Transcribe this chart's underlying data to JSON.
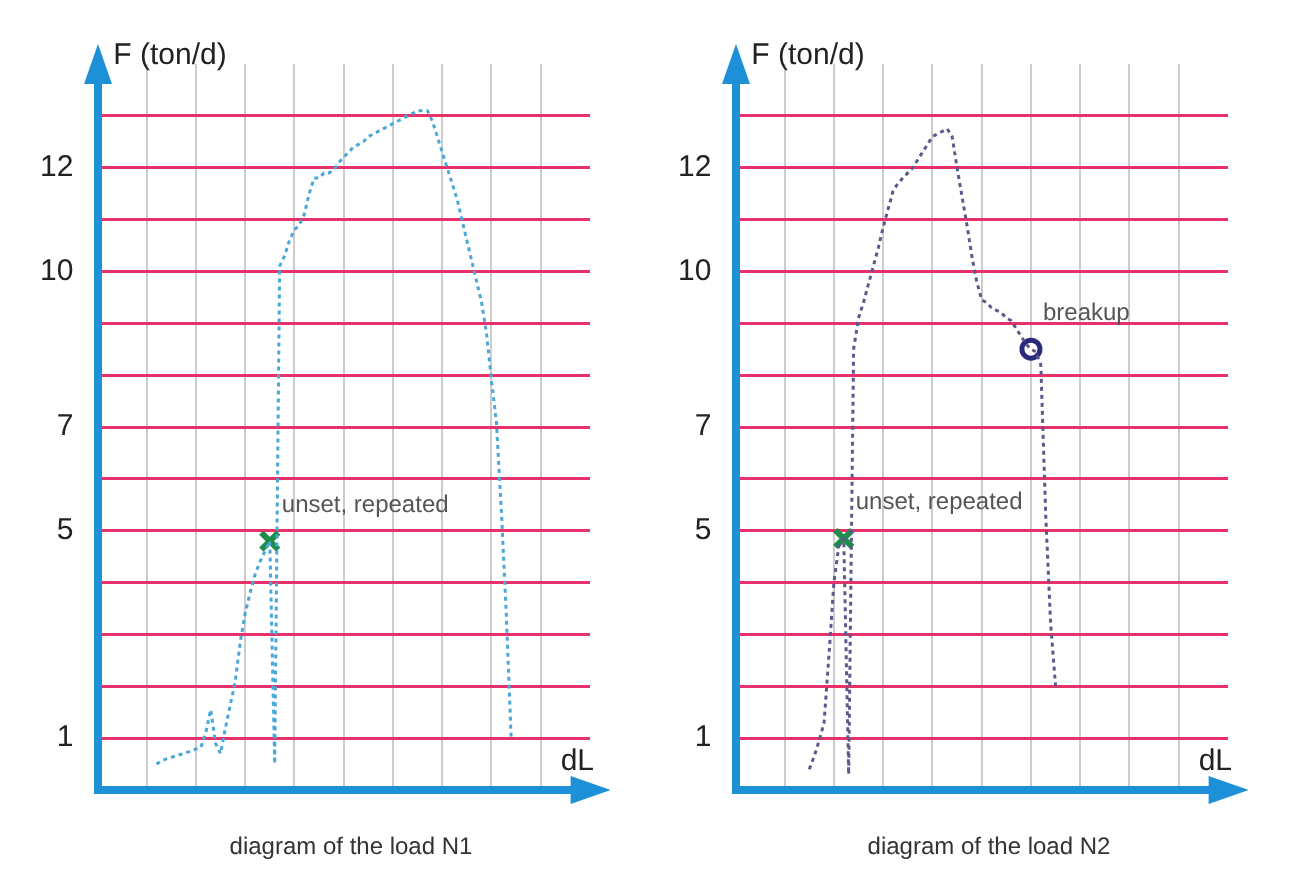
{
  "chart_data": [
    {
      "type": "line",
      "xlabel": "dL",
      "ylabel": "F (ton/d)",
      "ylim": [
        0,
        14
      ],
      "categories": [
        null,
        null,
        null,
        null,
        null,
        null,
        null,
        null,
        null,
        null,
        null,
        null,
        null,
        null,
        null,
        null,
        null,
        null,
        null,
        null,
        null,
        null,
        null,
        null,
        null,
        null,
        null,
        null,
        null,
        null,
        null,
        null,
        null,
        null,
        null,
        null,
        null,
        null,
        null,
        null,
        null,
        null,
        null,
        null,
        null,
        null,
        null,
        null,
        null,
        null,
        null,
        null,
        null,
        null,
        null,
        null,
        null,
        null,
        null,
        null,
        null,
        null,
        null,
        null,
        null,
        null,
        null,
        null,
        null,
        null,
        null,
        null,
        null,
        null,
        null,
        null,
        null,
        null,
        null,
        null,
        null,
        null,
        null,
        null,
        null,
        null,
        null,
        null,
        null,
        null,
        null,
        null,
        null,
        null,
        null,
        null,
        null,
        null,
        null,
        null,
        null
      ],
      "yticks": [
        1,
        {
          "value": 2,
          "label": null
        },
        {
          "value": 3,
          "label": null
        },
        {
          "value": 4,
          "label": null
        },
        5,
        {
          "value": 6,
          "label": null
        },
        7,
        {
          "value": 8,
          "label": null
        },
        {
          "value": 9,
          "label": null
        },
        10,
        {
          "value": 11,
          "label": null
        },
        12,
        {
          "value": 13,
          "label": null
        }
      ],
      "tick_labels": "y",
      "grid": true,
      "legend": false,
      "line_style": "dotted",
      "series": [
        {
          "color": "#4aa8d8",
          "marker": "none",
          "values": [
            null,
            null,
            null,
            null,
            null,
            null,
            null,
            null,
            null,
            null,
            null,
            null,
            0.5,
            0.56,
            0.6,
            0.63,
            0.66,
            0.69,
            0.72,
            0.75,
            0.79,
            0.82,
            1.1,
            1.55,
            0.9,
            0.7,
            1.2,
            1.65,
            2.1,
            2.85,
            3.4,
            3.8,
            4.15,
            4.4,
            4.6,
            4.8,
            0.5,
            10.1,
            10.3,
            10.6,
            10.8,
            10.9,
            11.1,
            11.5,
            11.8,
            11.8,
            11.9,
            11.9,
            11.95,
            12.1,
            12.2,
            12.3,
            12.4,
            12.45,
            12.5,
            12.6,
            12.65,
            12.7,
            12.75,
            12.8,
            12.85,
            12.9,
            12.95,
            13.0,
            13.05,
            13.1,
            13.1,
            13.1,
            12.9,
            12.6,
            12.3,
            12.0,
            11.7,
            11.4,
            11.0,
            10.6,
            10.2,
            9.8,
            9.4,
            8.8,
            7.9,
            7.1,
            5.4,
            3.4,
            1.0,
            null,
            null,
            null,
            null,
            null,
            null,
            null,
            null,
            null,
            null,
            null,
            null,
            null,
            null,
            null,
            null
          ]
        },
        {
          "type": "scatter",
          "color": "#1e8c4a",
          "marker": "cross",
          "values": [
            null,
            null,
            null,
            null,
            null,
            null,
            null,
            null,
            null,
            null,
            null,
            null,
            null,
            null,
            null,
            null,
            null,
            null,
            null,
            null,
            null,
            null,
            null,
            null,
            null,
            null,
            null,
            null,
            null,
            null,
            null,
            null,
            null,
            null,
            null,
            4.8,
            null,
            null,
            null,
            null,
            null,
            null,
            null,
            null,
            null,
            null,
            null,
            null,
            null,
            null,
            null,
            null,
            null,
            null,
            null,
            null,
            null,
            null,
            null,
            null,
            null,
            null,
            null,
            null,
            null,
            null,
            null,
            null,
            null,
            null,
            null,
            null,
            null,
            null,
            null,
            null,
            null,
            null,
            null,
            null,
            null,
            null,
            null,
            null,
            null,
            null,
            null,
            null,
            null,
            null,
            null,
            null,
            null,
            null,
            null,
            null,
            null,
            null,
            null,
            null,
            null
          ]
        }
      ],
      "annotations": [
        "unset, repeated",
        "diagram of the load N1"
      ]
    },
    {
      "type": "line",
      "xlabel": "dL",
      "ylabel": "F (ton/d)",
      "ylim": [
        0,
        14
      ],
      "categories": [
        null,
        null,
        null,
        null,
        null,
        null,
        null,
        null,
        null,
        null,
        null,
        null,
        null,
        null,
        null,
        null,
        null,
        null,
        null,
        null,
        null,
        null,
        null,
        null,
        null,
        null,
        null,
        null,
        null,
        null,
        null,
        null,
        null,
        null,
        null,
        null,
        null,
        null,
        null,
        null,
        null,
        null,
        null,
        null,
        null,
        null,
        null,
        null,
        null,
        null,
        null,
        null,
        null,
        null,
        null,
        null,
        null,
        null,
        null,
        null,
        null,
        null,
        null,
        null,
        null,
        null,
        null,
        null,
        null,
        null,
        null,
        null,
        null,
        null,
        null,
        null,
        null,
        null,
        null,
        null,
        null,
        null,
        null,
        null,
        null,
        null,
        null,
        null,
        null,
        null,
        null,
        null,
        null,
        null,
        null,
        null,
        null,
        null,
        null,
        null,
        null
      ],
      "yticks": [
        1,
        {
          "value": 2,
          "label": null
        },
        {
          "value": 3,
          "label": null
        },
        {
          "value": 4,
          "label": null
        },
        5,
        {
          "value": 6,
          "label": null
        },
        7,
        {
          "value": 8,
          "label": null
        },
        {
          "value": 9,
          "label": null
        },
        10,
        {
          "value": 11,
          "label": null
        },
        12,
        {
          "value": 13,
          "label": null
        }
      ],
      "tick_labels": "y",
      "grid": true,
      "legend": false,
      "line_style": "dotted",
      "series": [
        {
          "color": "#5a5a8c",
          "marker": "none",
          "values": [
            null,
            null,
            null,
            null,
            null,
            null,
            null,
            null,
            null,
            null,
            null,
            null,
            null,
            null,
            null,
            0.4,
            0.65,
            0.95,
            1.3,
            2.6,
            4.0,
            4.7,
            4.85,
            0.3,
            8.5,
            9.1,
            9.4,
            9.75,
            10.1,
            10.45,
            10.85,
            11.2,
            11.55,
            11.7,
            11.8,
            11.9,
            12.0,
            12.15,
            12.3,
            12.45,
            12.6,
            12.65,
            12.7,
            12.75,
            12.6,
            12.0,
            11.45,
            10.9,
            10.3,
            9.8,
            9.45,
            9.4,
            9.3,
            9.25,
            9.2,
            9.1,
            9.05,
            8.9,
            8.75,
            8.6,
            8.5,
            8.45,
            8.2,
            5.3,
            3.2,
            2.0,
            null,
            null,
            null,
            null,
            null,
            null,
            null,
            null,
            null,
            null,
            null,
            null,
            null,
            null,
            null,
            null,
            null,
            null,
            null,
            null,
            null,
            null,
            null,
            null,
            null,
            null,
            null,
            null,
            null,
            null,
            null,
            null,
            null,
            null,
            null
          ]
        },
        {
          "type": "scatter",
          "color": "#1e8c4a",
          "marker": "cross",
          "values": [
            null,
            null,
            null,
            null,
            null,
            null,
            null,
            null,
            null,
            null,
            null,
            null,
            null,
            null,
            null,
            null,
            null,
            null,
            null,
            null,
            null,
            null,
            4.85,
            null,
            null,
            null,
            null,
            null,
            null,
            null,
            null,
            null,
            null,
            null,
            null,
            null,
            null,
            null,
            null,
            null,
            null,
            null,
            null,
            null,
            null,
            null,
            null,
            null,
            null,
            null,
            null,
            null,
            null,
            null,
            null,
            null,
            null,
            null,
            null,
            null,
            null,
            null,
            null,
            null,
            null,
            null,
            null,
            null,
            null,
            null,
            null,
            null,
            null,
            null,
            null,
            null,
            null,
            null,
            null,
            null,
            null,
            null,
            null,
            null,
            null,
            null,
            null,
            null,
            null,
            null,
            null,
            null,
            null,
            null,
            null,
            null,
            null,
            null,
            null,
            null,
            null
          ]
        },
        {
          "type": "scatter",
          "color": "#2a2a7a",
          "marker": "circle",
          "values": [
            null,
            null,
            null,
            null,
            null,
            null,
            null,
            null,
            null,
            null,
            null,
            null,
            null,
            null,
            null,
            null,
            null,
            null,
            null,
            null,
            null,
            null,
            null,
            null,
            null,
            null,
            null,
            null,
            null,
            null,
            null,
            null,
            null,
            null,
            null,
            null,
            null,
            null,
            null,
            null,
            null,
            null,
            null,
            null,
            null,
            null,
            null,
            null,
            null,
            null,
            null,
            null,
            null,
            null,
            null,
            null,
            null,
            null,
            null,
            null,
            8.5,
            null,
            null,
            null,
            null,
            null,
            null,
            null,
            null,
            null,
            null,
            null,
            null,
            null,
            null,
            null,
            null,
            null,
            null,
            null,
            null,
            null,
            null,
            null,
            null,
            null,
            null,
            null,
            null,
            null,
            null,
            null,
            null,
            null,
            null,
            null,
            null,
            null,
            null,
            null,
            null
          ]
        }
      ],
      "annotations": [
        "unset, repeated",
        "breakup",
        "diagram of the load N2"
      ]
    }
  ]
}
